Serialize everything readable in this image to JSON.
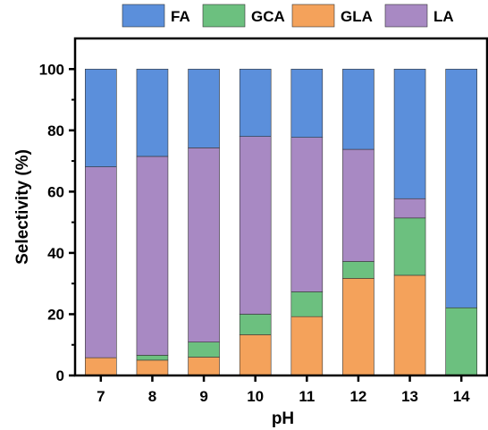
{
  "chart_data": {
    "type": "bar",
    "stacked": true,
    "xlabel": "pH",
    "ylabel": "Selectivity (%)",
    "ylim": [
      0,
      110
    ],
    "yticks": [
      0,
      20,
      40,
      60,
      80,
      100
    ],
    "categories": [
      "7",
      "8",
      "9",
      "10",
      "11",
      "12",
      "13",
      "14"
    ],
    "series": [
      {
        "name": "GLA",
        "color": "#F4A25B",
        "values": [
          5.8,
          5,
          6,
          13.3,
          19.2,
          31.7,
          32.7,
          0
        ]
      },
      {
        "name": "GCA",
        "color": "#6CC07F",
        "values": [
          0,
          1.6,
          4.9,
          6.7,
          8.1,
          5.5,
          18.7,
          22.1
        ]
      },
      {
        "name": "LA",
        "color": "#A889C3",
        "values": [
          62.3,
          64.9,
          63.4,
          58,
          50.4,
          36.6,
          6.3,
          0
        ]
      },
      {
        "name": "FA",
        "color": "#5B8FDB",
        "values": [
          31.9,
          28.5,
          25.7,
          22,
          22.3,
          26.2,
          42.3,
          77.9
        ]
      }
    ],
    "legend": {
      "position": "top",
      "order": [
        "FA",
        "GCA",
        "GLA",
        "LA"
      ]
    },
    "grid": false
  }
}
